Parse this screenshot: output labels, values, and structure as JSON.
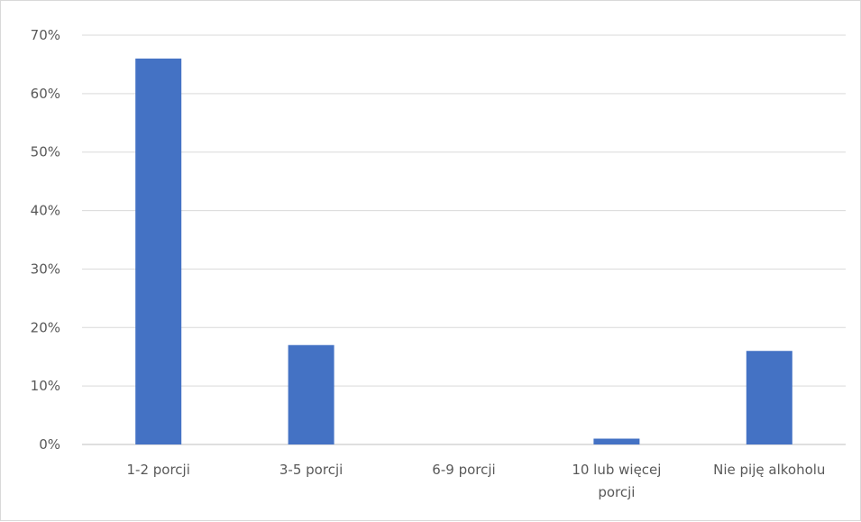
{
  "chart_data": {
    "type": "bar",
    "categories": [
      "1-2 porcji",
      "3-5 porcji",
      "6-9 porcji",
      "10 lub więcej porcji",
      "Nie piję alkoholu"
    ],
    "series": [
      {
        "values": [
          66,
          17,
          0,
          1,
          16
        ]
      }
    ],
    "y_ticks": [
      "0%",
      "10%",
      "20%",
      "30%",
      "40%",
      "50%",
      "60%",
      "70%"
    ],
    "ylim": [
      0,
      70
    ],
    "grid": true,
    "legend": "none",
    "title": "",
    "xlabel": "",
    "ylabel": ""
  },
  "colors": {
    "bar": "#4472c4",
    "grid": "#d9d9d9",
    "axis": "#bfbfbf",
    "text": "#595959"
  }
}
